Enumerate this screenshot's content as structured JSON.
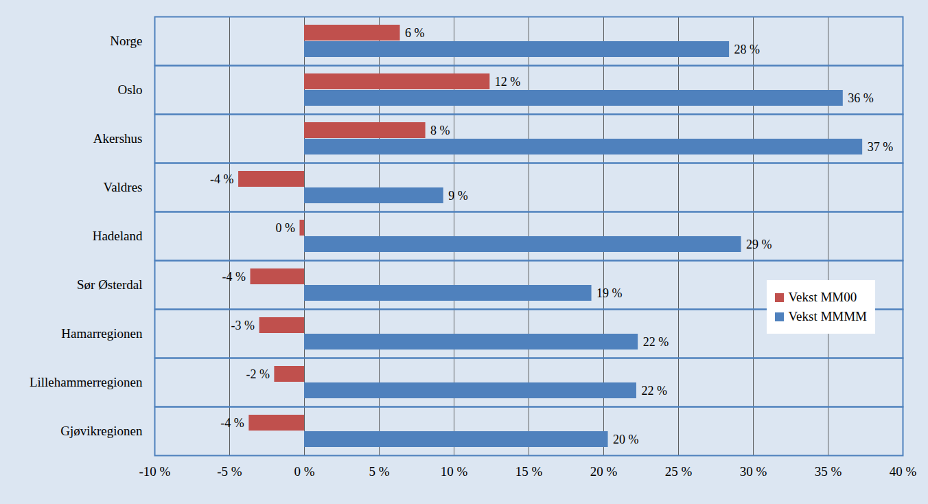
{
  "chart_data": {
    "type": "bar",
    "orientation": "horizontal",
    "categories": [
      "Norge",
      "Oslo",
      "Akershus",
      "Valdres",
      "Hadeland",
      "Sør Østerdal",
      "Hamarregionen",
      "Lillehammerregionen",
      "Gjøvikregionen"
    ],
    "series": [
      {
        "name": "Vekst MM00",
        "color": "#c0504d",
        "values": [
          6.4,
          12.4,
          8.1,
          -4.4,
          -0.3,
          -3.6,
          -3.0,
          -2.0,
          -3.7
        ],
        "value_labels": [
          "6 %",
          "12 %",
          "8 %",
          "-4 %",
          "0 %",
          "-4 %",
          "-3 %",
          "-2 %",
          "-4 %"
        ]
      },
      {
        "name": "Vekst MMMM",
        "color": "#4f81bd",
        "values": [
          28.4,
          36.0,
          37.3,
          9.3,
          29.2,
          19.2,
          22.3,
          22.2,
          20.3
        ],
        "value_labels": [
          "28 %",
          "36 %",
          "37 %",
          "9 %",
          "29 %",
          "19 %",
          "22 %",
          "22 %",
          "20 %"
        ]
      }
    ],
    "xlim": [
      -10,
      40
    ],
    "xticks": [
      {
        "value": -10,
        "label": "-10 %"
      },
      {
        "value": -5,
        "label": "-5 %"
      },
      {
        "value": 0,
        "label": "0 %"
      },
      {
        "value": 5,
        "label": "5 %"
      },
      {
        "value": 10,
        "label": "10 %"
      },
      {
        "value": 15,
        "label": "15 %"
      },
      {
        "value": 20,
        "label": "20 %"
      },
      {
        "value": 25,
        "label": "25 %"
      },
      {
        "value": 30,
        "label": "30 %"
      },
      {
        "value": 35,
        "label": "35 %"
      },
      {
        "value": 40,
        "label": "40 %"
      }
    ],
    "grid": true,
    "legend": "right",
    "data_labels": true
  }
}
